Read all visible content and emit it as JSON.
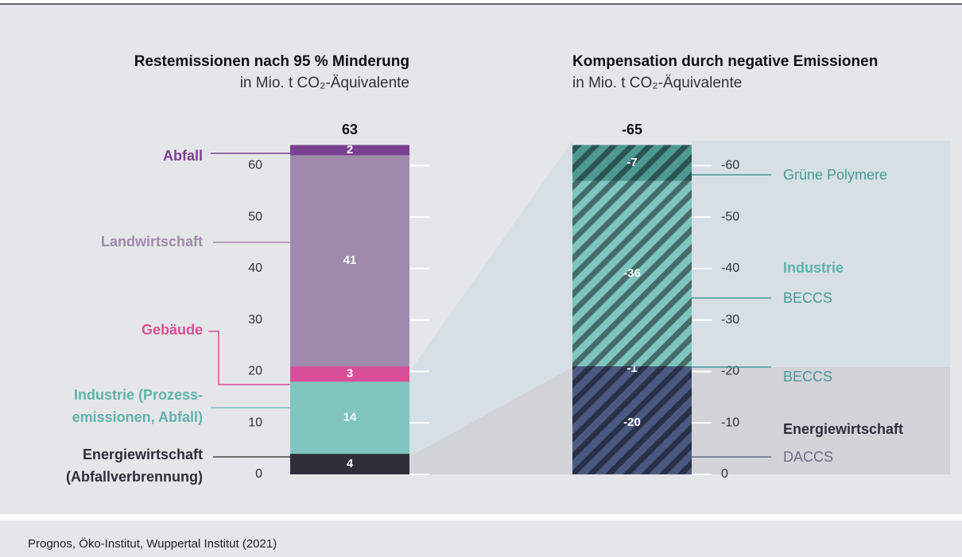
{
  "chart_data": [
    {
      "type": "stacked-bar",
      "title": "Restemissionen nach 95 % Minderung",
      "subtitle": "in Mio. t CO₂-Äquivalente",
      "total": 63,
      "ylim": [
        0,
        65
      ],
      "yticks": [
        0,
        10,
        20,
        30,
        40,
        50,
        60
      ],
      "series": [
        {
          "name": [
            "Energiewirtschaft",
            "(Abfallverbrennung)"
          ],
          "color": "#2d2f3a",
          "values": [
            4
          ]
        },
        {
          "name": [
            "Industrie (Prozess-",
            "emissionen, Abfall)"
          ],
          "color": "#7ec4bf",
          "values": [
            14
          ]
        },
        {
          "name": [
            "Gebäude"
          ],
          "color": "#d94f97",
          "values": [
            3
          ]
        },
        {
          "name": [
            "Landwirtschaft"
          ],
          "color": "#a08aab",
          "values": [
            41
          ]
        },
        {
          "name": [
            "Abfall"
          ],
          "color": "#7b3f91",
          "values": [
            2
          ]
        }
      ]
    },
    {
      "type": "stacked-bar",
      "title": "Kompensation durch negative Emissionen",
      "subtitle": "in Mio. t CO₂-Äquivalente",
      "total": -65,
      "ylim": [
        0,
        -65
      ],
      "yticks": [
        0,
        -10,
        -20,
        -30,
        -40,
        -50,
        -60
      ],
      "groups": [
        {
          "name": "Industrie",
          "color": "#5fb3ac"
        },
        {
          "name": "Energiewirtschaft",
          "color": "#2d2f3a"
        }
      ],
      "series": [
        {
          "name": "DACCS",
          "group": 1,
          "color": "#4a5a80",
          "values": [
            -20
          ]
        },
        {
          "name": "BECCS",
          "group": 1,
          "color": "#4a5a80",
          "values": [
            -1
          ]
        },
        {
          "name": "BECCS",
          "group": 0,
          "color": "#7ec4bf",
          "values": [
            -36
          ]
        },
        {
          "name": "Grüne Polymere",
          "group": 0,
          "color": "#4e9a93",
          "values": [
            -7
          ]
        }
      ]
    }
  ],
  "footer": "Prognos, Öko-Institut, Wuppertal Institut (2021)"
}
